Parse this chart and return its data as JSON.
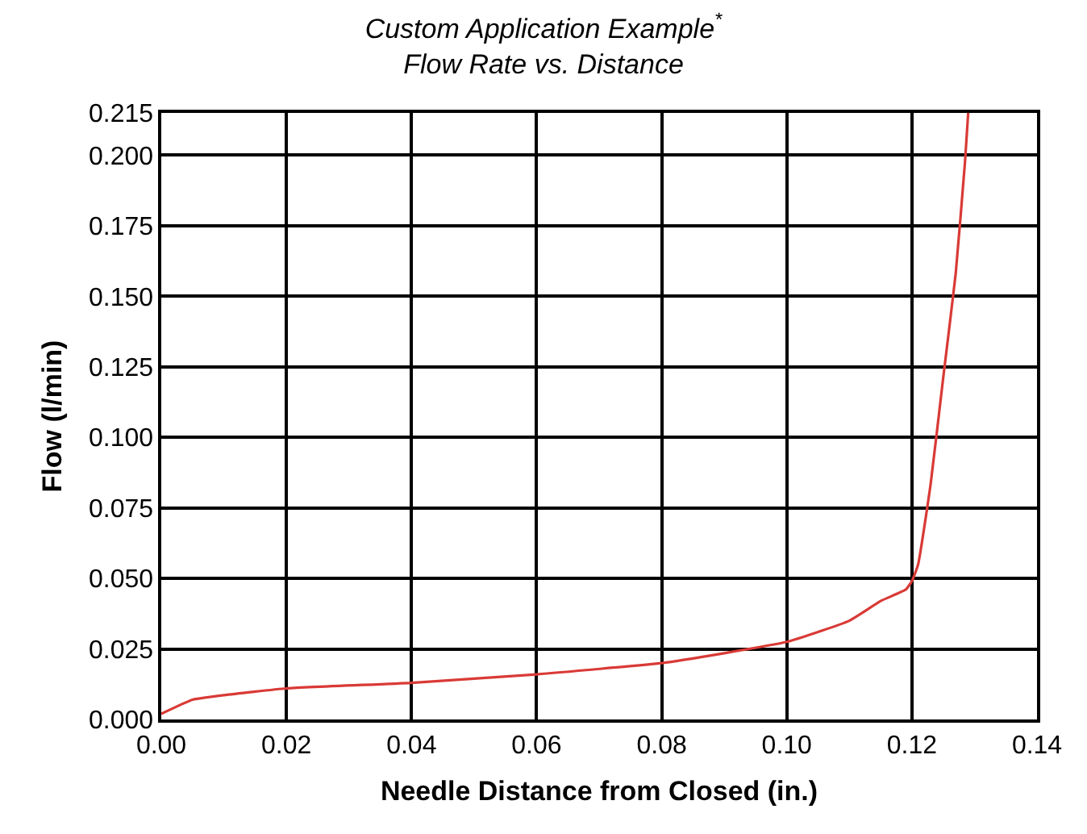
{
  "chart_data": {
    "type": "line",
    "title": "Custom Application Example$^{*}$",
    "subtitle": "Flow Rate vs. Distance",
    "xlabel": "Needle Distance from Closed (in.)",
    "ylabel": "Flow (l/min)",
    "x": [
      0,
      0.005,
      0.01,
      0.02,
      0.04,
      0.06,
      0.08,
      0.09,
      0.1,
      0.11,
      0.115,
      0.119,
      0.12,
      0.121,
      0.123,
      0.125,
      0.127,
      0.1285,
      0.129
    ],
    "series": [
      {
        "color": "#d93a36",
        "values": [
          0.002,
          0.007,
          0.0086,
          0.011,
          0.013,
          0.016,
          0.02,
          0.0235,
          0.0275,
          0.035,
          0.042,
          0.046,
          0.049,
          0.055,
          0.0835,
          0.121,
          0.158,
          0.198,
          0.215
        ]
      }
    ],
    "xlim": [
      0,
      0.14
    ],
    "xticks": [
      {
        "value": 0,
        "label": "0.00"
      },
      {
        "value": 0.02,
        "label": "0.02"
      },
      {
        "value": 0.04,
        "label": "0.04"
      },
      {
        "value": 0.06,
        "label": "0.06"
      },
      {
        "value": 0.08,
        "label": "0.08"
      },
      {
        "value": 0.1,
        "label": "0.10"
      },
      {
        "value": 0.12,
        "label": "0.12"
      },
      {
        "value": 0.14,
        "label": "0.14"
      }
    ],
    "ylim": [
      0,
      0.215
    ],
    "yticks": [
      {
        "value": 0,
        "label": "0.000"
      },
      {
        "value": 0.025,
        "label": "0.025"
      },
      {
        "value": 0.05,
        "label": "0.050"
      },
      {
        "value": 0.075,
        "label": "0.075"
      },
      {
        "value": 0.1,
        "label": "0.100"
      },
      {
        "value": 0.125,
        "label": "0.125"
      },
      {
        "value": 0.15,
        "label": "0.150"
      },
      {
        "value": 0.175,
        "label": "0.175"
      },
      {
        "value": 0.2,
        "label": "0.200"
      },
      {
        "value": 0.215,
        "label": "0.215"
      }
    ],
    "grid": true,
    "marker": "none",
    "line_style": "solid"
  }
}
